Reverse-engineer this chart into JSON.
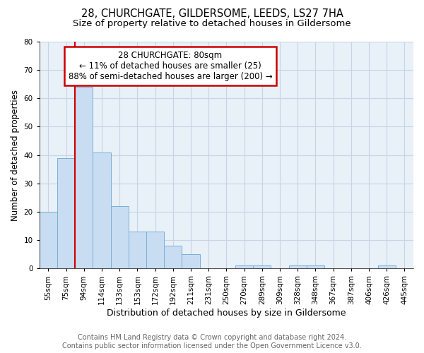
{
  "title": "28, CHURCHGATE, GILDERSOME, LEEDS, LS27 7HA",
  "subtitle": "Size of property relative to detached houses in Gildersome",
  "xlabel": "Distribution of detached houses by size in Gildersome",
  "ylabel": "Number of detached properties",
  "categories": [
    "55sqm",
    "75sqm",
    "94sqm",
    "114sqm",
    "133sqm",
    "153sqm",
    "172sqm",
    "192sqm",
    "211sqm",
    "231sqm",
    "250sqm",
    "270sqm",
    "289sqm",
    "309sqm",
    "328sqm",
    "348sqm",
    "367sqm",
    "387sqm",
    "406sqm",
    "426sqm",
    "445sqm"
  ],
  "values": [
    20,
    39,
    64,
    41,
    22,
    13,
    13,
    8,
    5,
    0,
    0,
    1,
    1,
    0,
    1,
    1,
    0,
    0,
    0,
    1,
    0
  ],
  "bar_color": "#c9ddf2",
  "bar_edge_color": "#7aafd4",
  "grid_color": "#c8d4e4",
  "background_color": "#e8f0f8",
  "vline_x_index": 1.5,
  "vline_color": "#cc0000",
  "annotation_line1": "28 CHURCHGATE: 80sqm",
  "annotation_line2": "← 11% of detached houses are smaller (25)",
  "annotation_line3": "88% of semi-detached houses are larger (200) →",
  "annotation_box_color": "#cc0000",
  "ylim": [
    0,
    80
  ],
  "yticks": [
    0,
    10,
    20,
    30,
    40,
    50,
    60,
    70,
    80
  ],
  "footer_line1": "Contains HM Land Registry data © Crown copyright and database right 2024.",
  "footer_line2": "Contains public sector information licensed under the Open Government Licence v3.0.",
  "title_fontsize": 10.5,
  "subtitle_fontsize": 9.5,
  "xlabel_fontsize": 9,
  "ylabel_fontsize": 8.5,
  "tick_fontsize": 7.5,
  "footer_fontsize": 7,
  "ann_fontsize": 8.5
}
